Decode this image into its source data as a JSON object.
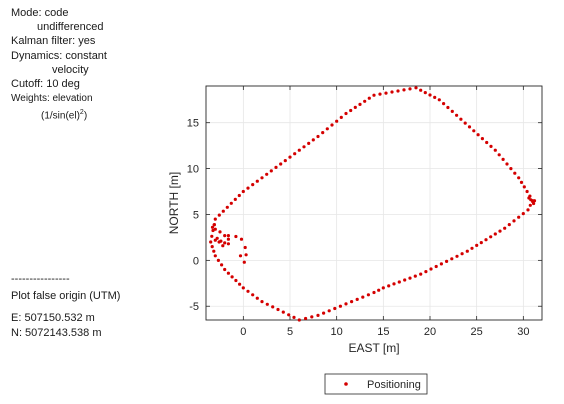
{
  "info": {
    "mode_line1": "Mode: code",
    "mode_line2": "undifferenced",
    "kalman": "Kalman filter: yes",
    "dynamics_line1": "Dynamics: constant",
    "dynamics_line2": "velocity",
    "cutoff": "Cutoff: 10 deg",
    "weights_line1": "Weights: elevation",
    "weights_line2": "(1/sin(el)",
    "weights_sup": "2",
    "weights_close": ")",
    "separator": "----------------",
    "origin_title": "Plot false origin (UTM)",
    "easting": "E: 507150.532 m",
    "northing": "N: 5072143.538 m"
  },
  "chart_data": {
    "type": "scatter",
    "title": "",
    "xlabel": "EAST [m]",
    "ylabel": "NORTH [m]",
    "xlim": [
      -4,
      32
    ],
    "ylim": [
      -6.5,
      19
    ],
    "xticks": [
      0,
      5,
      10,
      15,
      20,
      25,
      30
    ],
    "yticks": [
      -5,
      0,
      5,
      10,
      15
    ],
    "grid": true,
    "legend": "bottom-center",
    "colors": {
      "series": "#d40000",
      "grid": "#e6e6e6",
      "axis": "#262626"
    },
    "series": [
      {
        "name": "Positioning",
        "marker": "dot",
        "path": [
          [
            -3.5,
            2.0
          ],
          [
            -3.0,
            4.5
          ],
          [
            0.0,
            7.5
          ],
          [
            4.0,
            10.5
          ],
          [
            8.0,
            13.5
          ],
          [
            11.0,
            16.0
          ],
          [
            14.0,
            18.0
          ],
          [
            18.5,
            18.8
          ],
          [
            21.0,
            17.5
          ],
          [
            27.0,
            12.0
          ],
          [
            29.5,
            9.0
          ],
          [
            31.0,
            6.5
          ],
          [
            30.5,
            5.5
          ],
          [
            28.0,
            3.5
          ],
          [
            24.0,
            1.0
          ],
          [
            19.0,
            -1.5
          ],
          [
            15.0,
            -3.0
          ],
          [
            14.0,
            -3.5
          ],
          [
            8.0,
            -6.0
          ],
          [
            6.0,
            -6.5
          ],
          [
            2.0,
            -4.5
          ],
          [
            0.0,
            -3.0
          ],
          [
            -2.0,
            -1.0
          ],
          [
            -3.0,
            0.5
          ],
          [
            -3.5,
            2.0
          ]
        ],
        "points": [
          [
            -2.8,
            2.4
          ],
          [
            -2.4,
            2.1
          ],
          [
            -2.0,
            1.9
          ],
          [
            -1.6,
            1.8
          ],
          [
            -3.0,
            3.4
          ],
          [
            -2.5,
            3.1
          ],
          [
            -2.0,
            2.7
          ],
          [
            -1.6,
            2.3
          ],
          [
            -3.0,
            2.2
          ],
          [
            -2.6,
            2.0
          ],
          [
            -2.2,
            1.6
          ],
          [
            -1.6,
            2.7
          ],
          [
            -0.8,
            2.6
          ],
          [
            -0.2,
            2.3
          ],
          [
            0.2,
            1.4
          ],
          [
            0.3,
            0.6
          ],
          [
            0.1,
            -0.2
          ],
          [
            -0.3,
            0.5
          ],
          [
            30.8,
            6.6
          ],
          [
            31.0,
            6.4
          ],
          [
            31.2,
            6.5
          ],
          [
            30.6,
            6.8
          ],
          [
            31.1,
            6.2
          ],
          [
            -3.3,
            3.6
          ],
          [
            -3.1,
            3.9
          ]
        ]
      }
    ]
  }
}
